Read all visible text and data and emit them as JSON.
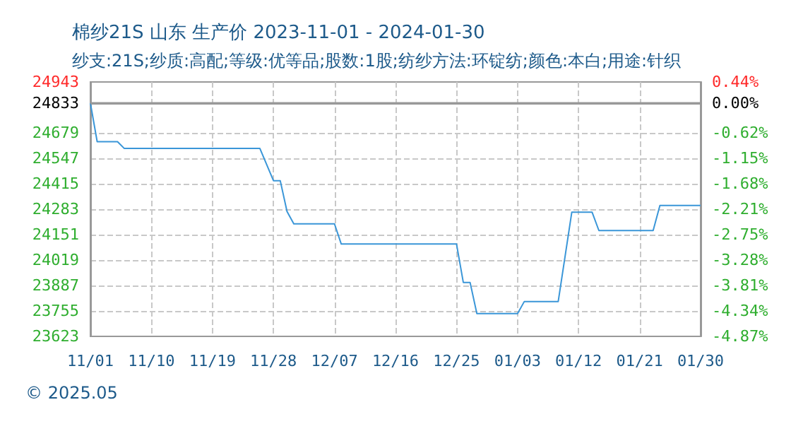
{
  "chart_data": {
    "type": "line",
    "title": "棉纱21S 山东 生产价 2023-11-01 - 2024-01-30",
    "subtitle": "纱支:21S;纱质:高配;等级:优等品;股数:1股;纺纱方法:环锭纺;颜色:本白;用途:针织",
    "x": [
      "2023-11-01",
      "2023-11-02",
      "2023-11-05",
      "2023-11-06",
      "2023-11-26",
      "2023-11-28",
      "2023-11-29",
      "2023-11-30",
      "2023-12-01",
      "2023-12-07",
      "2023-12-08",
      "2023-12-25",
      "2023-12-26",
      "2023-12-27",
      "2023-12-28",
      "2024-01-03",
      "2024-01-04",
      "2024-01-09",
      "2024-01-11",
      "2024-01-14",
      "2024-01-15",
      "2024-01-23",
      "2024-01-24",
      "2024-01-30"
    ],
    "series": [
      {
        "color": "#3a96d8",
        "values": [
          24833,
          24633,
          24633,
          24598,
          24598,
          24431,
          24431,
          24271,
          24207,
          24207,
          24102,
          24102,
          23903,
          23903,
          23741,
          23741,
          23804,
          23804,
          24267,
          24267,
          24172,
          24172,
          24302,
          24302
        ]
      }
    ],
    "xlim": [
      "2023-11-01",
      "2024-01-30"
    ],
    "xticks": [
      {
        "value": "2023-11-01",
        "label": "11/01"
      },
      {
        "value": "2023-11-10",
        "label": "11/10"
      },
      {
        "value": "2023-11-19",
        "label": "11/19"
      },
      {
        "value": "2023-11-28",
        "label": "11/28"
      },
      {
        "value": "2023-12-07",
        "label": "12/07"
      },
      {
        "value": "2023-12-16",
        "label": "12/16"
      },
      {
        "value": "2023-12-25",
        "label": "12/25"
      },
      {
        "value": "2024-01-03",
        "label": "01/03"
      },
      {
        "value": "2024-01-12",
        "label": "01/12"
      },
      {
        "value": "2024-01-21",
        "label": "01/21"
      },
      {
        "value": "2024-01-30",
        "label": "01/30"
      }
    ],
    "ylim": [
      23623,
      24943
    ],
    "yticks": [
      23623,
      23755,
      23887,
      24019,
      24151,
      24283,
      24415,
      24547,
      24679,
      24833,
      24943
    ],
    "y2lim": [
      -4.87,
      0.44
    ],
    "y2ticks": [
      {
        "value": -4.87,
        "label": "-4.87%"
      },
      {
        "value": -4.34,
        "label": "-4.34%"
      },
      {
        "value": -3.81,
        "label": "-3.81%"
      },
      {
        "value": -3.28,
        "label": "-3.28%"
      },
      {
        "value": -2.75,
        "label": "-2.75%"
      },
      {
        "value": -2.21,
        "label": "-2.21%"
      },
      {
        "value": -1.68,
        "label": "-1.68%"
      },
      {
        "value": -1.15,
        "label": "-1.15%"
      },
      {
        "value": -0.62,
        "label": "-0.62%"
      },
      {
        "value": 0,
        "label": "0.00%"
      },
      {
        "value": 0.44,
        "label": "0.44%"
      }
    ],
    "ref_lines": [
      {
        "axis": "y",
        "value": 24833,
        "color": "#999999",
        "line_style": "solid"
      }
    ],
    "grid": true,
    "line_style": "solid",
    "marker": "none",
    "annotations": [
      "© 2025.05"
    ]
  }
}
